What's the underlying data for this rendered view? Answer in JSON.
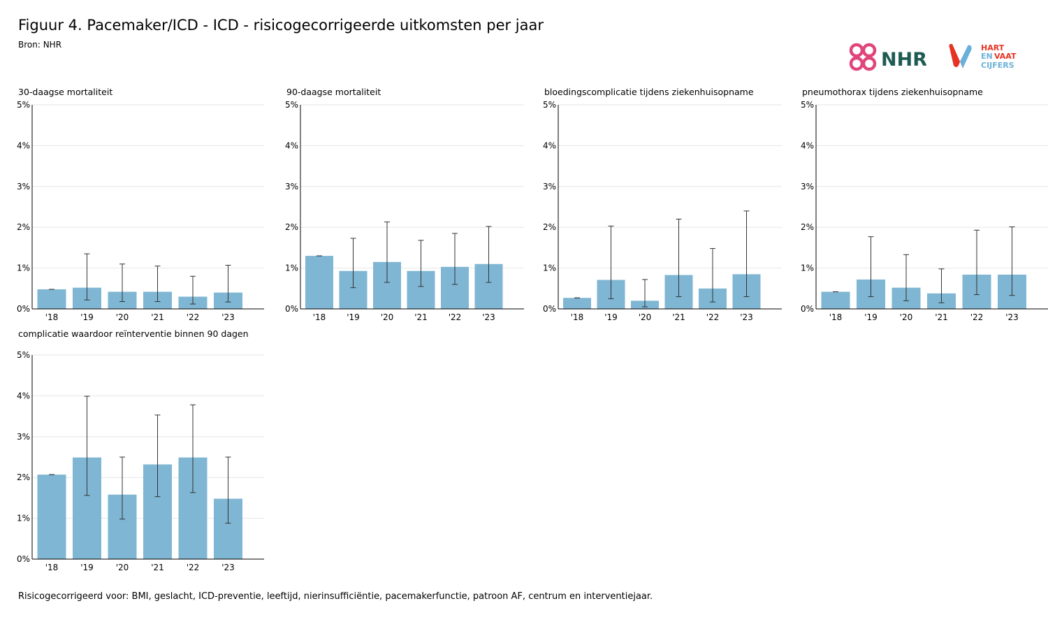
{
  "title": "Figuur 4. Pacemaker/ICD - ICD - risicogecorrigeerde uitkomsten per jaar",
  "source": "Bron: NHR",
  "footnote": "Risicogecorrigeerd voor: BMI, geslacht, ICD-preventie, leeftijd, nierinsufficiëntie, pacemakerfunctie, patroon AF, centrum en interventiejaar.",
  "logos": {
    "nhr": "NHR",
    "hartenvaat": [
      "HART",
      "EN",
      "VAAT",
      "CIJFERS"
    ]
  },
  "colors": {
    "bar": "#7fb6d3",
    "error_bar": "#333333",
    "grid": "#e6e6e6",
    "axis": "#000000",
    "nhr_pink": "#e0457b",
    "nhr_green": "#1e5b52",
    "hv_red": "#e63323",
    "hv_blue": "#6bb0d8"
  },
  "chart_data": [
    {
      "type": "bar",
      "title": "30-daagse mortaliteit",
      "categories": [
        "'18",
        "'19",
        "'20",
        "'21",
        "'22",
        "'23"
      ],
      "values": [
        0.48,
        0.52,
        0.42,
        0.42,
        0.3,
        0.4
      ],
      "ci_lower": [
        0.48,
        0.22,
        0.18,
        0.18,
        0.12,
        0.17
      ],
      "ci_upper": [
        0.48,
        1.35,
        1.1,
        1.05,
        0.8,
        1.07
      ],
      "yticks": [
        "0%",
        "1%",
        "2%",
        "3%",
        "4%",
        "5%"
      ],
      "ylim": [
        0,
        5
      ],
      "grid": true
    },
    {
      "type": "bar",
      "title": "90-daagse mortaliteit",
      "categories": [
        "'18",
        "'19",
        "'20",
        "'21",
        "'22",
        "'23"
      ],
      "values": [
        1.3,
        0.93,
        1.15,
        0.93,
        1.03,
        1.1
      ],
      "ci_lower": [
        1.3,
        0.52,
        0.65,
        0.55,
        0.6,
        0.65
      ],
      "ci_upper": [
        1.3,
        1.73,
        2.13,
        1.68,
        1.85,
        2.02
      ],
      "yticks": [
        "0%",
        "1%",
        "2%",
        "3%",
        "4%",
        "5%"
      ],
      "ylim": [
        0,
        5
      ],
      "grid": true
    },
    {
      "type": "bar",
      "title": "bloedingscomplicatie tijdens ziekenhuisopname",
      "categories": [
        "'18",
        "'19",
        "'20",
        "'21",
        "'22",
        "'23"
      ],
      "values": [
        0.27,
        0.71,
        0.2,
        0.83,
        0.5,
        0.85
      ],
      "ci_lower": [
        0.27,
        0.25,
        0.05,
        0.3,
        0.17,
        0.3
      ],
      "ci_upper": [
        0.27,
        2.03,
        0.72,
        2.2,
        1.48,
        2.4
      ],
      "yticks": [
        "0%",
        "1%",
        "2%",
        "3%",
        "4%",
        "5%"
      ],
      "ylim": [
        0,
        5
      ],
      "grid": true
    },
    {
      "type": "bar",
      "title": "pneumothorax tijdens ziekenhuisopname",
      "categories": [
        "'18",
        "'19",
        "'20",
        "'21",
        "'22",
        "'23"
      ],
      "values": [
        0.42,
        0.72,
        0.52,
        0.38,
        0.84,
        0.84
      ],
      "ci_lower": [
        0.42,
        0.3,
        0.2,
        0.15,
        0.35,
        0.33
      ],
      "ci_upper": [
        0.42,
        1.77,
        1.33,
        0.98,
        1.93,
        2.01
      ],
      "yticks": [
        "0%",
        "1%",
        "2%",
        "3%",
        "4%",
        "5%"
      ],
      "ylim": [
        0,
        5
      ],
      "grid": true
    },
    {
      "type": "bar",
      "title": "complicatie waardoor reïnterventie binnen 90 dagen",
      "categories": [
        "'18",
        "'19",
        "'20",
        "'21",
        "'22",
        "'23"
      ],
      "values": [
        2.07,
        2.49,
        1.58,
        2.32,
        2.49,
        1.48
      ],
      "ci_lower": [
        2.07,
        1.56,
        0.98,
        1.53,
        1.63,
        0.88
      ],
      "ci_upper": [
        2.07,
        3.99,
        2.5,
        3.53,
        3.78,
        2.5
      ],
      "yticks": [
        "0%",
        "1%",
        "2%",
        "3%",
        "4%",
        "5%"
      ],
      "ylim": [
        0,
        5
      ],
      "grid": true
    }
  ]
}
